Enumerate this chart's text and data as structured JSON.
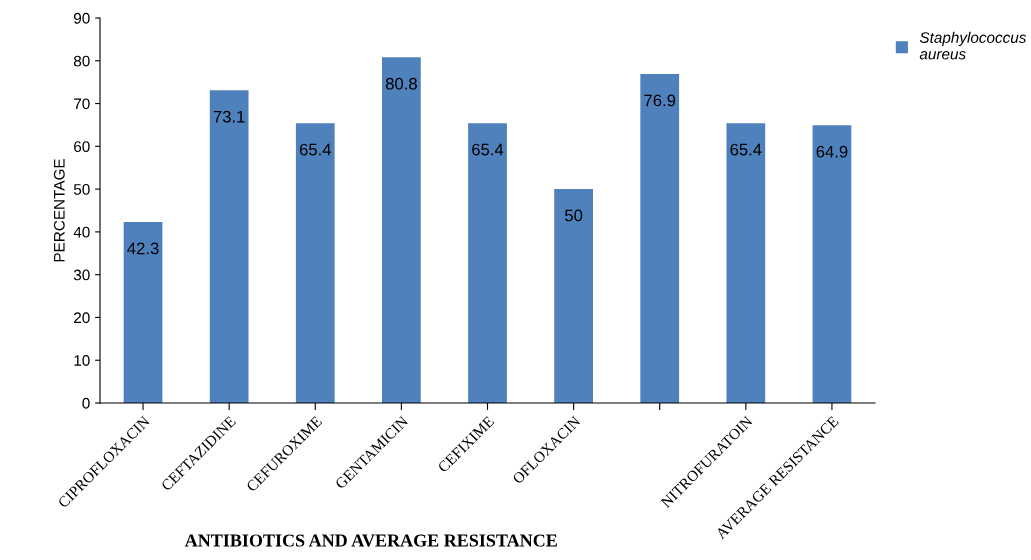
{
  "chart_data": {
    "type": "bar",
    "xlabel": "ANTIBIOTICS AND AVERAGE RESISTANCE",
    "ylabel": "PERCENTAGE",
    "categories": [
      "CIPROFLOXACIN",
      "CEFTAZIDINE",
      "CEFUROXIME",
      "GENTAMICIN",
      "CEFIXIME",
      "OFLOXACIN",
      null,
      "NITROFURATOIN",
      "AVERAGE RESISTANCE"
    ],
    "series": [
      {
        "name": "Staphylococcus aureus",
        "color": "#4f81bd",
        "values": [
          42.3,
          73.1,
          65.4,
          80.8,
          65.4,
          50,
          76.9,
          65.4,
          64.9
        ]
      }
    ],
    "ylim": [
      0,
      90
    ],
    "yticks": [
      0,
      10,
      20,
      30,
      40,
      50,
      60,
      70,
      80,
      90
    ],
    "data_labels": true,
    "grid": false,
    "legend": "top right"
  }
}
